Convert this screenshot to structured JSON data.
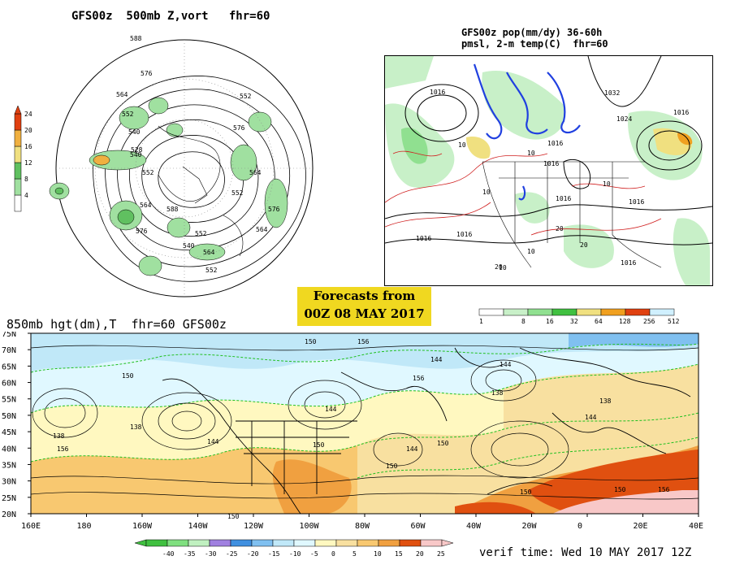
{
  "panel_500mb": {
    "title": "GFS00z  500mb Z,vort   fhr=60",
    "colorbar_levels": [
      "4",
      "8",
      "12",
      "16",
      "20",
      "24"
    ],
    "colorbar_colors": [
      "#ffffff",
      "#a0e0a0",
      "#60c060",
      "#f0e080",
      "#f0b040",
      "#e04010"
    ],
    "contour_labels": [
      "588",
      "576",
      "564",
      "552",
      "540",
      "528",
      "540",
      "552",
      "564",
      "576",
      "588",
      "552",
      "564",
      "540",
      "552",
      "576",
      "564",
      "552",
      "576",
      "564",
      "552"
    ]
  },
  "panel_precip": {
    "title_line1": "GFS00z pop(mm/dy) 36-60h",
    "title_line2": "pmsl, 2-m temp(C)  fhr=60",
    "contour_labels": [
      "1016",
      "1016",
      "1016",
      "1016",
      "1024",
      "1016",
      "1016",
      "1032",
      "1016",
      "1016",
      "1016"
    ],
    "temp_labels": [
      "10",
      "10",
      "10",
      "10",
      "10",
      "10",
      "20",
      "20",
      "20"
    ],
    "colorbar_levels": [
      "1",
      "8",
      "16",
      "32",
      "64",
      "128",
      "256",
      "512"
    ],
    "colorbar_colors": [
      "#ffffff",
      "#c8f0c8",
      "#90e090",
      "#40c040",
      "#f0e080",
      "#f0a020",
      "#e04010",
      "#d0f0ff"
    ]
  },
  "banner": {
    "line1": "Forecasts from",
    "line2": "00Z 08 MAY 2017"
  },
  "panel_850mb": {
    "title": "850mb hgt(dm),T  fhr=60 GFS00z",
    "lat_labels": [
      "75N",
      "70N",
      "65N",
      "60N",
      "55N",
      "50N",
      "45N",
      "40N",
      "35N",
      "30N",
      "25N",
      "20N"
    ],
    "lon_labels": [
      "160E",
      "180",
      "160W",
      "140W",
      "120W",
      "100W",
      "80W",
      "60W",
      "40W",
      "20W",
      "0",
      "20E",
      "40E"
    ],
    "contour_labels": [
      "150",
      "150",
      "156",
      "144",
      "138",
      "144",
      "156",
      "144",
      "150",
      "144",
      "156",
      "138",
      "144",
      "138",
      "150",
      "150",
      "138",
      "144",
      "150",
      "156",
      "150",
      "150"
    ],
    "colorbar_levels": [
      "-40",
      "-35",
      "-30",
      "-25",
      "-20",
      "-15",
      "-10",
      "-5",
      "0",
      "5",
      "10",
      "15",
      "20",
      "25"
    ],
    "colorbar_colors": [
      "#40c040",
      "#80e080",
      "#c0f0c0",
      "#a080e0",
      "#4090e0",
      "#80c0f0",
      "#c0e8f8",
      "#e0f8ff",
      "#fff8c0",
      "#f8e0a0",
      "#f8c870",
      "#f0a040",
      "#e05010",
      "#f8c8c8"
    ]
  },
  "verif": "verif time: Wed 10 MAY 2017 12Z"
}
